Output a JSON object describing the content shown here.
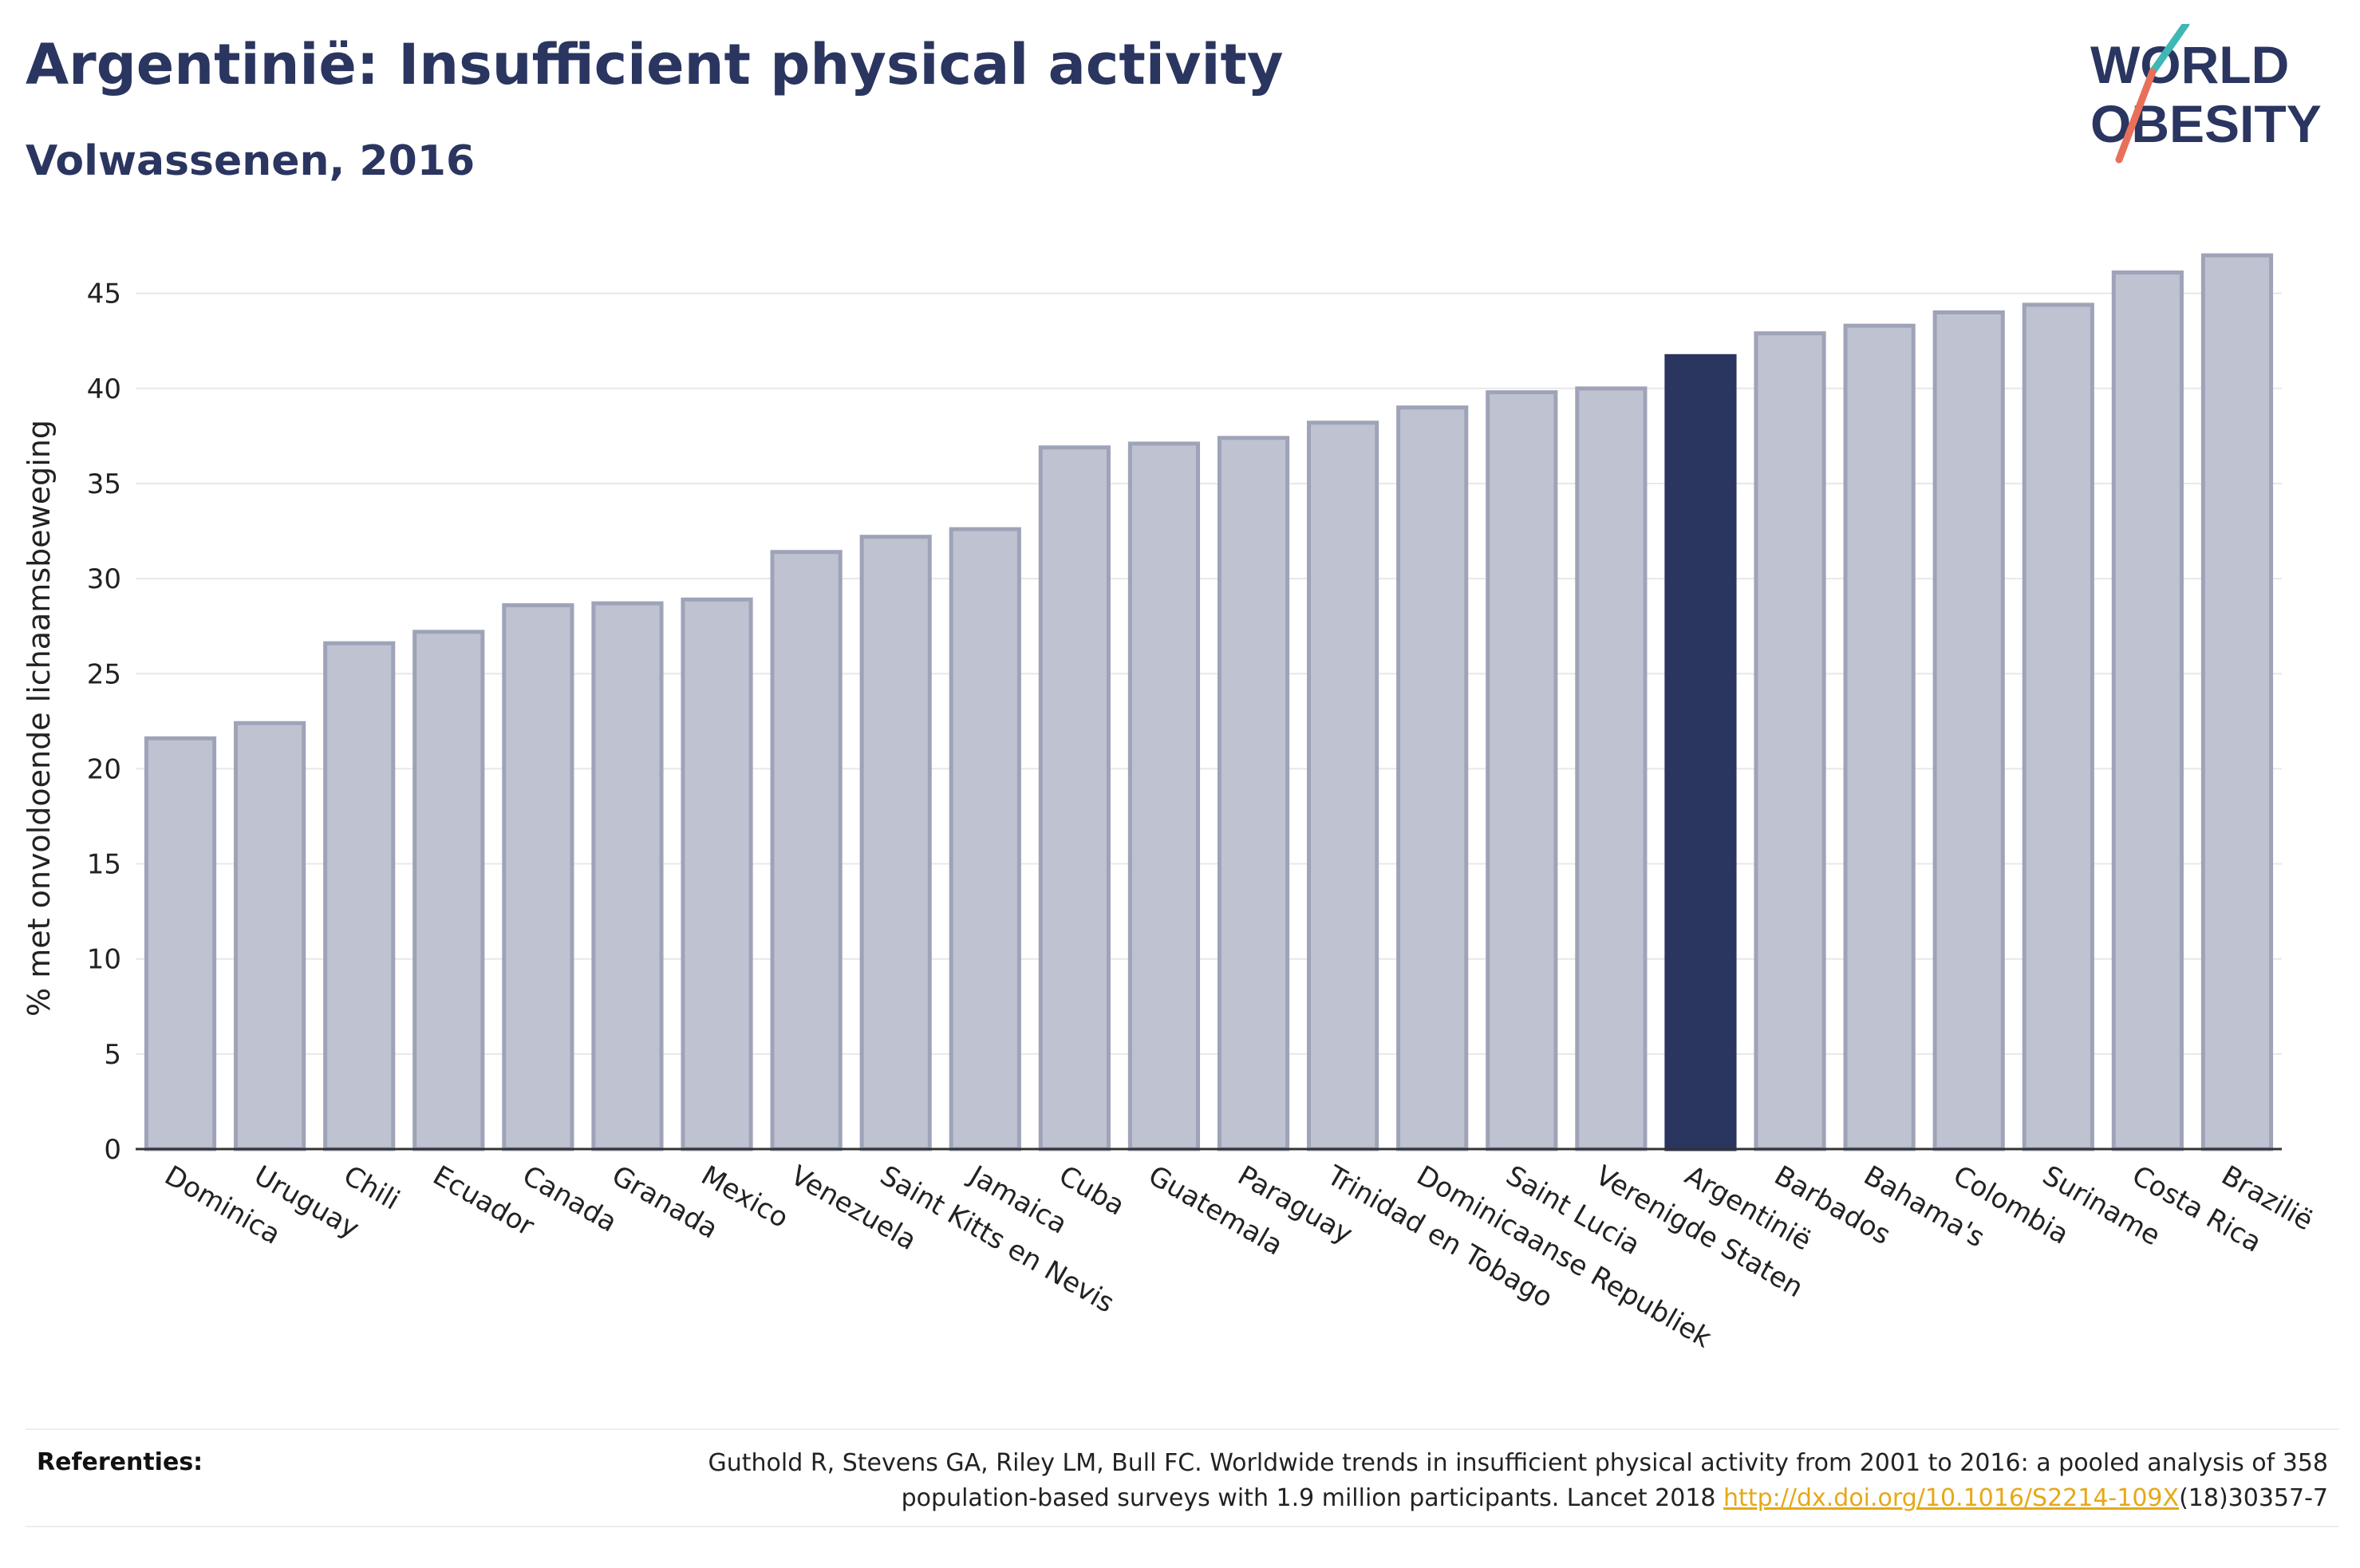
{
  "header": {
    "title": "Argentinië: Insufficient physical activity",
    "subtitle": "Volwassenen, 2016"
  },
  "logo": {
    "line1": "WORLD",
    "line2": "OBESITY",
    "accent_teal": "#3fb8b5",
    "accent_coral": "#e8705a"
  },
  "colors": {
    "bar_default": "#bfc2d0",
    "bar_border": "#9ea3b8",
    "bar_highlight": "#2a3560",
    "grid": "#e8e8e8",
    "text": "#2a3560"
  },
  "chart_data": {
    "type": "bar",
    "ylabel": "% met onvoldoende lichaamsbeweging",
    "ylim": [
      0,
      47
    ],
    "yticks": [
      0,
      5,
      10,
      15,
      20,
      25,
      30,
      35,
      40,
      45
    ],
    "grid": true,
    "highlight": "Argentinië",
    "categories": [
      "Dominica",
      "Uruguay",
      "Chili",
      "Ecuador",
      "Canada",
      "Granada",
      "Mexico",
      "Venezuela",
      "Saint Kitts en Nevis",
      "Jamaica",
      "Cuba",
      "Guatemala",
      "Paraguay",
      "Trinidad en Tobago",
      "Dominicaanse Republiek",
      "Saint Lucia",
      "Verenigde Staten",
      "Argentinië",
      "Barbados",
      "Bahama's",
      "Colombia",
      "Suriname",
      "Costa Rica",
      "Brazilië"
    ],
    "values": [
      21.6,
      22.4,
      26.6,
      27.2,
      28.6,
      28.7,
      28.9,
      31.4,
      32.2,
      32.6,
      36.9,
      37.1,
      37.4,
      38.2,
      39.0,
      39.8,
      40.0,
      41.7,
      42.9,
      43.3,
      44.0,
      44.4,
      46.1,
      47.0
    ]
  },
  "references": {
    "label": "Referenties:",
    "text_before_link": "Guthold R, Stevens GA, Riley LM, Bull FC. Worldwide trends in insufficient physical activity from 2001 to 2016: a pooled analysis of 358 population-based surveys with 1.9 million participants. Lancet 2018 ",
    "link_text": "http://dx.doi.org/10.1016/S2214-109X",
    "text_after_link": "(18)30357-7"
  }
}
